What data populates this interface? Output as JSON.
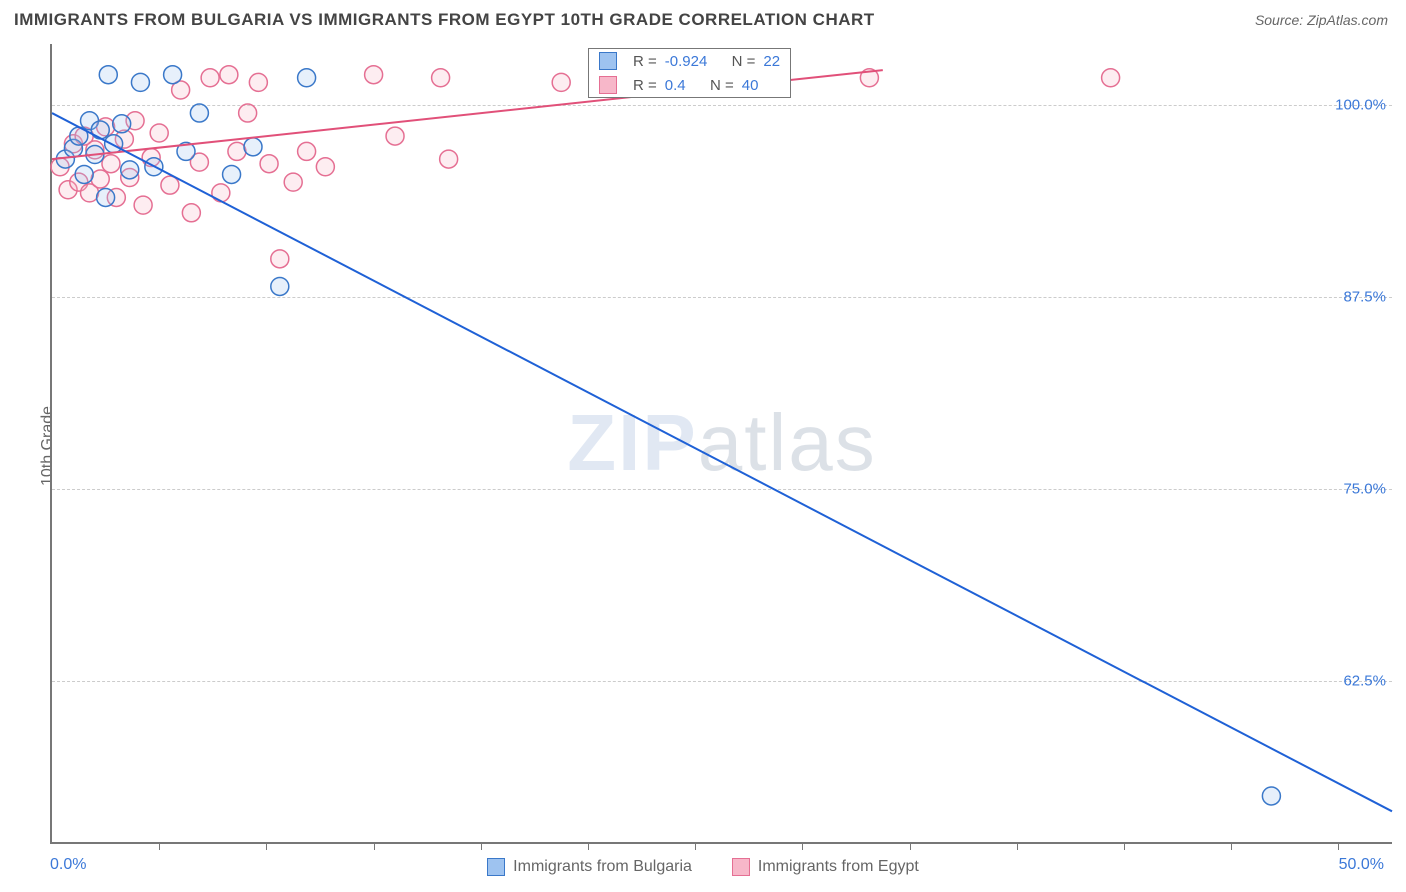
{
  "header": {
    "title": "IMMIGRANTS FROM BULGARIA VS IMMIGRANTS FROM EGYPT 10TH GRADE CORRELATION CHART",
    "source_prefix": "Source: ",
    "source_name": "ZipAtlas.com"
  },
  "chart": {
    "type": "scatter",
    "ylabel": "10th Grade",
    "xlim": [
      0,
      50
    ],
    "ylim": [
      52,
      104
    ],
    "x_min_label": "0.0%",
    "x_max_label": "50.0%",
    "y_ticks": [
      62.5,
      75.0,
      87.5,
      100.0
    ],
    "y_tick_labels": [
      "62.5%",
      "75.0%",
      "87.5%",
      "100.0%"
    ],
    "x_minor_ticks": [
      4,
      8,
      12,
      16,
      20,
      24,
      28,
      32,
      36,
      40,
      44,
      48
    ],
    "background_color": "#ffffff",
    "grid_color": "#cccccc",
    "axis_color": "#777777",
    "tick_label_color": "#3b78d8",
    "point_radius": 9,
    "series": [
      {
        "name": "Immigrants from Bulgaria",
        "color_fill": "#9ec3f0",
        "color_stroke": "#3a78c9",
        "R": -0.924,
        "N": 22,
        "trend": {
          "x1": 0,
          "y1": 99.5,
          "x2": 50,
          "y2": 54.0,
          "color": "#1f61d6"
        },
        "points": [
          [
            0.5,
            96.5
          ],
          [
            0.8,
            97.2
          ],
          [
            1.0,
            98.0
          ],
          [
            1.2,
            95.5
          ],
          [
            1.4,
            99.0
          ],
          [
            1.6,
            96.8
          ],
          [
            1.8,
            98.4
          ],
          [
            2.0,
            94.0
          ],
          [
            2.1,
            102.0
          ],
          [
            2.3,
            97.5
          ],
          [
            2.6,
            98.8
          ],
          [
            2.9,
            95.8
          ],
          [
            3.3,
            101.5
          ],
          [
            3.8,
            96.0
          ],
          [
            4.5,
            102.0
          ],
          [
            5.0,
            97.0
          ],
          [
            5.5,
            99.5
          ],
          [
            6.7,
            95.5
          ],
          [
            7.5,
            97.3
          ],
          [
            8.5,
            88.2
          ],
          [
            9.5,
            101.8
          ],
          [
            45.5,
            55.0
          ]
        ]
      },
      {
        "name": "Immigrants from Egypt",
        "color_fill": "#f7b7c9",
        "color_stroke": "#e56f93",
        "R": 0.4,
        "N": 40,
        "trend": {
          "x1": 0,
          "y1": 96.5,
          "x2": 31,
          "y2": 102.3,
          "color": "#e15079"
        },
        "points": [
          [
            0.3,
            96.0
          ],
          [
            0.6,
            94.5
          ],
          [
            0.8,
            97.5
          ],
          [
            1.0,
            95.0
          ],
          [
            1.2,
            98.0
          ],
          [
            1.4,
            94.3
          ],
          [
            1.6,
            97.1
          ],
          [
            1.8,
            95.2
          ],
          [
            2.0,
            98.6
          ],
          [
            2.2,
            96.2
          ],
          [
            2.4,
            94.0
          ],
          [
            2.7,
            97.8
          ],
          [
            2.9,
            95.3
          ],
          [
            3.1,
            99.0
          ],
          [
            3.4,
            93.5
          ],
          [
            3.7,
            96.6
          ],
          [
            4.0,
            98.2
          ],
          [
            4.4,
            94.8
          ],
          [
            4.8,
            101.0
          ],
          [
            5.2,
            93.0
          ],
          [
            5.5,
            96.3
          ],
          [
            5.9,
            101.8
          ],
          [
            6.3,
            94.3
          ],
          [
            6.6,
            102.0
          ],
          [
            6.9,
            97.0
          ],
          [
            7.3,
            99.5
          ],
          [
            7.7,
            101.5
          ],
          [
            8.1,
            96.2
          ],
          [
            8.5,
            90.0
          ],
          [
            9.0,
            95.0
          ],
          [
            9.5,
            97.0
          ],
          [
            10.2,
            96.0
          ],
          [
            12.0,
            102.0
          ],
          [
            12.8,
            98.0
          ],
          [
            14.5,
            101.8
          ],
          [
            14.8,
            96.5
          ],
          [
            19.0,
            101.5
          ],
          [
            22.0,
            102.0
          ],
          [
            30.5,
            101.8
          ],
          [
            39.5,
            101.8
          ]
        ]
      }
    ],
    "watermark": {
      "bold": "ZIP",
      "thin": "atlas"
    },
    "statbox": {
      "r_label": "R =",
      "n_label": "N ="
    }
  },
  "legend": {
    "series_a": "Immigrants from Bulgaria",
    "series_b": "Immigrants from Egypt"
  }
}
